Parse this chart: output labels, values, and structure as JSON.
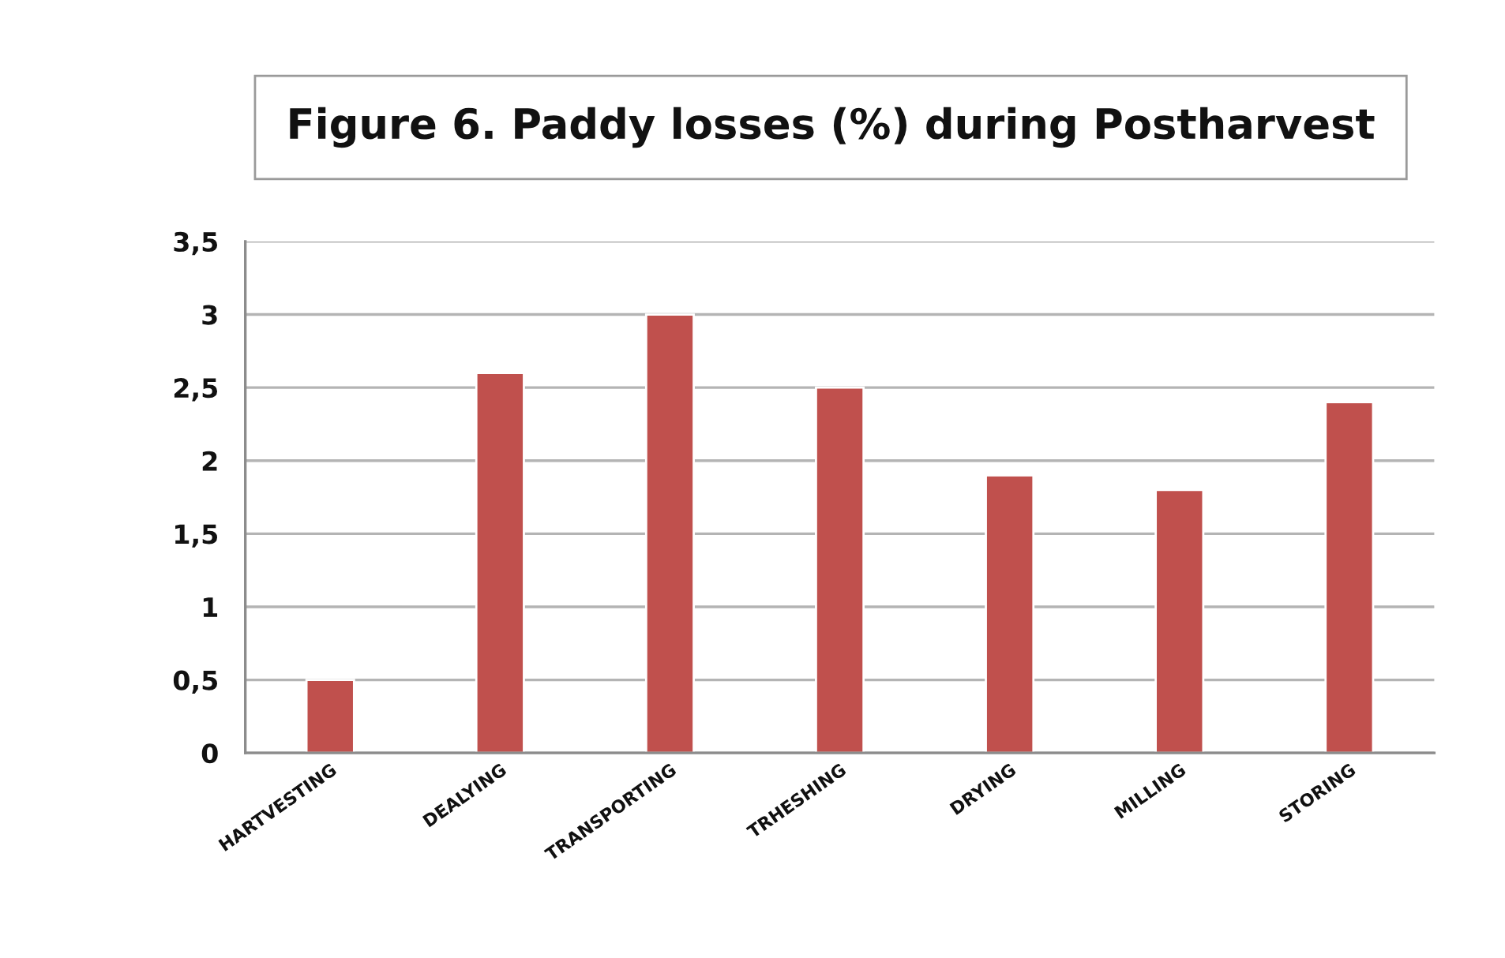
{
  "chart_data": {
    "type": "bar",
    "title": "Figure 6. Paddy losses (%) during Postharvest",
    "categories": [
      "HARTVESTING",
      "DEALYING",
      "TRANSPORTING",
      "TRHESHING",
      "DRYING",
      "MILLING",
      "STORING"
    ],
    "values": [
      0.5,
      2.6,
      3.0,
      2.5,
      1.9,
      1.8,
      2.4
    ],
    "color": "#c0504d",
    "ylim": [
      0,
      3.5
    ],
    "yticks": [
      0,
      {
        "value": 0.5,
        "label": "0,5"
      },
      1,
      {
        "value": 1.5,
        "label": "1,5"
      },
      2,
      {
        "value": 2.5,
        "label": "2,5"
      },
      3,
      {
        "value": 3.5,
        "label": "3,5"
      }
    ],
    "grid": "y"
  }
}
